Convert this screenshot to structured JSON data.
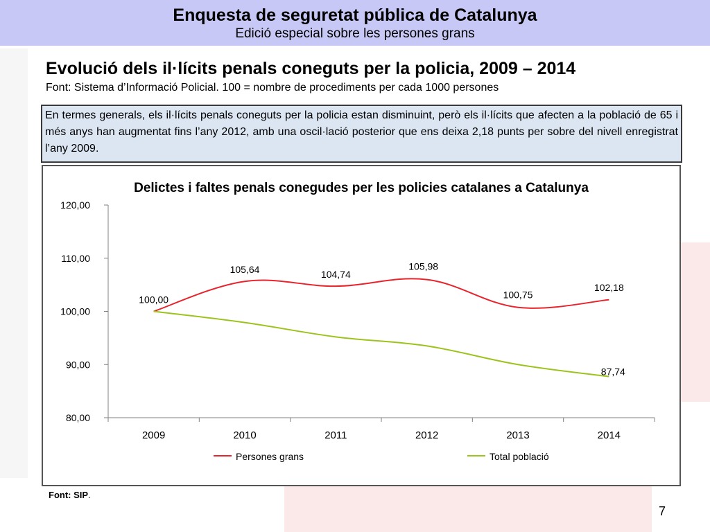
{
  "header": {
    "title": "Enquesta de seguretat pública de Catalunya",
    "subtitle": "Edició especial sobre les persones grans"
  },
  "section": {
    "title": "Evolució dels il·lícits penals coneguts per la policia, 2009 – 2014",
    "source": "Font: Sistema d’Informació Policial. 100 = nombre de procediments per cada 1000 persones"
  },
  "summary": "En termes generals, els il·lícits penals coneguts per la policia estan disminuint, però els il·lícits que afecten a la població de 65 i més anys han augmentat fins l’any 2012, amb una oscil·lació posterior que ens deixa 2,18 punts per sobre del nivell enregistrat l’any 2009.",
  "footnote": {
    "label": "Font: SIP",
    "suffix": "."
  },
  "page_number": "7",
  "colors": {
    "persones_grans": "#e8232c",
    "total_poblacio": "#9cc31c",
    "header_bg": "#c8c8f6",
    "summary_bg": "#dce6f2"
  },
  "chart_data": {
    "type": "line",
    "title": "Delictes i faltes penals conegudes per les policies catalanes a Catalunya",
    "categories": [
      "2009",
      "2010",
      "2011",
      "2012",
      "2013",
      "2014"
    ],
    "ylim": [
      80,
      120
    ],
    "yticks": [
      80,
      90,
      100,
      110,
      120
    ],
    "ytick_labels": [
      "80,00",
      "90,00",
      "100,00",
      "110,00",
      "120,00"
    ],
    "series": [
      {
        "name": "Persones grans",
        "values": [
          100.0,
          105.64,
          104.74,
          105.98,
          100.75,
          102.18
        ],
        "labels": [
          "100,00",
          "105,64",
          "104,74",
          "105,98",
          "100,75",
          "102,18"
        ],
        "color": "#e8232c"
      },
      {
        "name": "Total població",
        "values": [
          100.0,
          97.9,
          95.2,
          93.5,
          90.0,
          87.74
        ],
        "labels": [
          "",
          "",
          "",
          "",
          "",
          "87,74"
        ],
        "color": "#9cc31c"
      }
    ],
    "legend": "bottom"
  }
}
